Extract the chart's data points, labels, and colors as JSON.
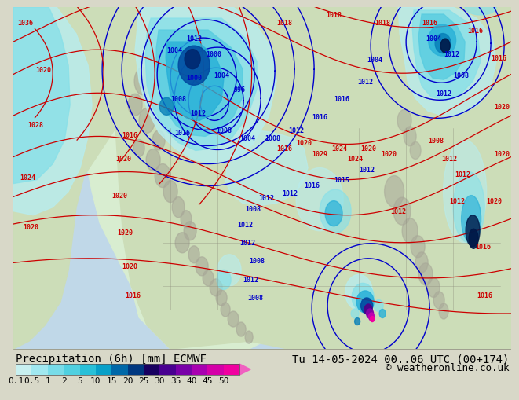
{
  "title_left": "Precipitation (6h) [mm] ECMWF",
  "title_right": "Tu 14-05-2024 00..06 UTC (00+174)",
  "copyright": "© weatheronline.co.uk",
  "colorbar_labels": [
    "0.1",
    "0.5",
    "1",
    "2",
    "5",
    "10",
    "15",
    "20",
    "25",
    "30",
    "35",
    "40",
    "45",
    "50"
  ],
  "colorbar_colors": [
    "#c8f0f0",
    "#a0e8f0",
    "#78dce8",
    "#50d0e0",
    "#28c0d8",
    "#08a0c8",
    "#0068a8",
    "#003880",
    "#180060",
    "#480090",
    "#7800a8",
    "#a800b0",
    "#d400a8",
    "#f000a0"
  ],
  "colorbar_arrow_color": "#f060c0",
  "bg_color": "#d8d8c8",
  "map_ocean_color": "#c0d8e8",
  "map_land_color": "#c8ddb8",
  "map_land_light": "#d8edd0",
  "map_gray": "#a8a898",
  "text_color": "#000000",
  "blue_isobar_color": "#0000cc",
  "red_isobar_color": "#cc0000",
  "fs_title": 10,
  "fs_tick": 8,
  "fs_label": 6,
  "fs_copyright": 9,
  "precip_colors": {
    "light_cyan": "#b8ecec",
    "cyan1": "#88e0e8",
    "cyan2": "#58cce0",
    "blue1": "#28b0d8",
    "blue2": "#0880b8",
    "blue3": "#0048a0",
    "dark_blue": "#002870",
    "very_dark": "#180050",
    "purple1": "#500088",
    "purple2": "#8800a8",
    "magenta1": "#c000b0",
    "magenta2": "#f000a0",
    "pink": "#f060c0"
  }
}
